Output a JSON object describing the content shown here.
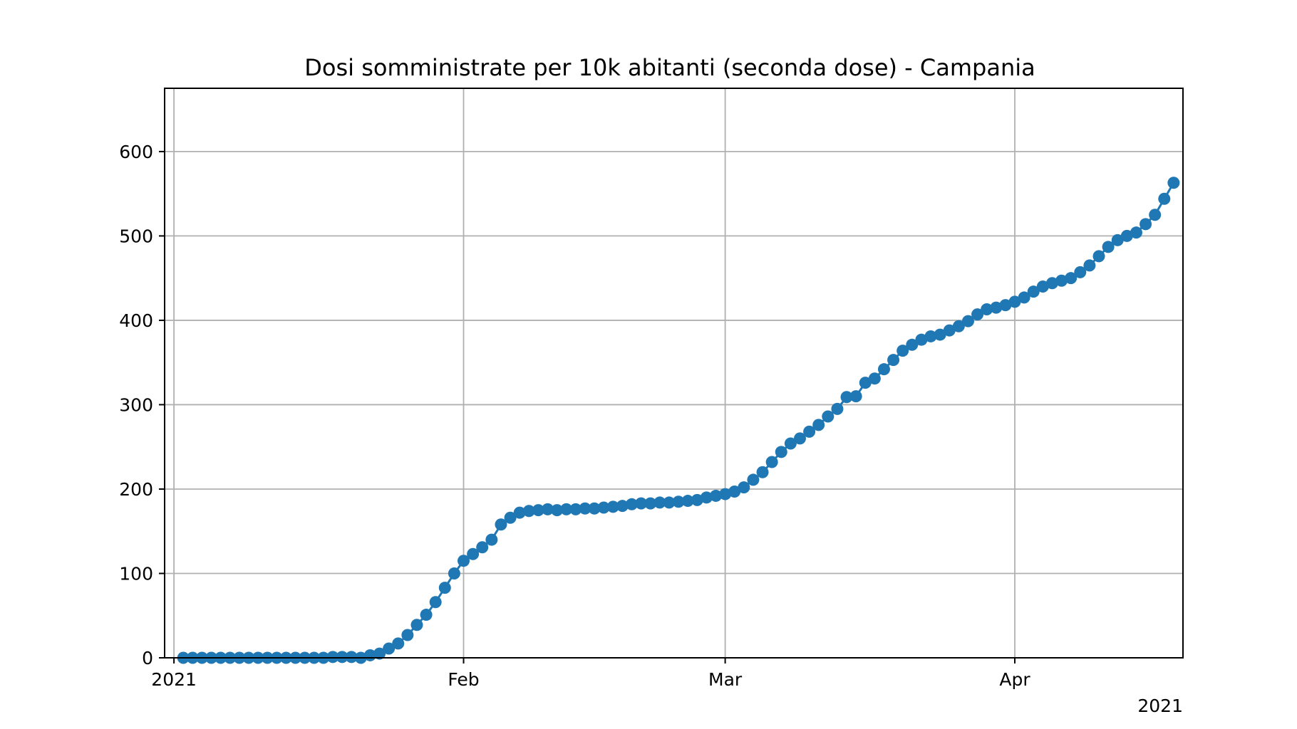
{
  "chart_data": {
    "type": "line",
    "title": "Dosi somministrate per 10k abitanti (seconda dose) - Campania",
    "xlabel": "",
    "ylabel": "",
    "x_offset_label": "2021",
    "xlim": [
      "2020-12-31",
      "2021-04-19"
    ],
    "ylim": [
      0,
      675
    ],
    "grid": true,
    "color": "#1f77b4",
    "x_ticks": [
      {
        "date": "2021-01-01",
        "label": "2021"
      },
      {
        "date": "2021-02-01",
        "label": "Feb"
      },
      {
        "date": "2021-03-01",
        "label": "Mar"
      },
      {
        "date": "2021-04-01",
        "label": "Apr"
      }
    ],
    "y_ticks": [
      0,
      100,
      200,
      300,
      400,
      500,
      600
    ],
    "series": [
      {
        "x": [
          "2021-01-02",
          "2021-01-03",
          "2021-01-04",
          "2021-01-05",
          "2021-01-06",
          "2021-01-07",
          "2021-01-08",
          "2021-01-09",
          "2021-01-10",
          "2021-01-11",
          "2021-01-12",
          "2021-01-13",
          "2021-01-14",
          "2021-01-15",
          "2021-01-16",
          "2021-01-17",
          "2021-01-18",
          "2021-01-19",
          "2021-01-20",
          "2021-01-21",
          "2021-01-22",
          "2021-01-23",
          "2021-01-24",
          "2021-01-25",
          "2021-01-26",
          "2021-01-27",
          "2021-01-28",
          "2021-01-29",
          "2021-01-30",
          "2021-01-31",
          "2021-02-01",
          "2021-02-02",
          "2021-02-03",
          "2021-02-04",
          "2021-02-05",
          "2021-02-06",
          "2021-02-07",
          "2021-02-08",
          "2021-02-09",
          "2021-02-10",
          "2021-02-11",
          "2021-02-12",
          "2021-02-13",
          "2021-02-14",
          "2021-02-15",
          "2021-02-16",
          "2021-02-17",
          "2021-02-18",
          "2021-02-19",
          "2021-02-20",
          "2021-02-21",
          "2021-02-22",
          "2021-02-23",
          "2021-02-24",
          "2021-02-25",
          "2021-02-26",
          "2021-02-27",
          "2021-02-28",
          "2021-03-01",
          "2021-03-02",
          "2021-03-03",
          "2021-03-04",
          "2021-03-05",
          "2021-03-06",
          "2021-03-07",
          "2021-03-08",
          "2021-03-09",
          "2021-03-10",
          "2021-03-11",
          "2021-03-12",
          "2021-03-13",
          "2021-03-14",
          "2021-03-15",
          "2021-03-16",
          "2021-03-17",
          "2021-03-18",
          "2021-03-19",
          "2021-03-20",
          "2021-03-21",
          "2021-03-22",
          "2021-03-23",
          "2021-03-24",
          "2021-03-25",
          "2021-03-26",
          "2021-03-27",
          "2021-03-28",
          "2021-03-29",
          "2021-03-30",
          "2021-03-31",
          "2021-04-01",
          "2021-04-02",
          "2021-04-03",
          "2021-04-04",
          "2021-04-05",
          "2021-04-06",
          "2021-04-07",
          "2021-04-08",
          "2021-04-09",
          "2021-04-10",
          "2021-04-11",
          "2021-04-12",
          "2021-04-13",
          "2021-04-14",
          "2021-04-15",
          "2021-04-16",
          "2021-04-17",
          "2021-04-18"
        ],
        "y": [
          0,
          0,
          0,
          0,
          0,
          0,
          0,
          0,
          0,
          0,
          0,
          0,
          0,
          0,
          0,
          0,
          1,
          1,
          1,
          0,
          3,
          5,
          11,
          17,
          27,
          39,
          51,
          66,
          83,
          100,
          115,
          123,
          131,
          140,
          158,
          166,
          172,
          174,
          175,
          176,
          175,
          176,
          176,
          177,
          177,
          178,
          179,
          180,
          182,
          183,
          183,
          184,
          184,
          185,
          186,
          187,
          190,
          192,
          194,
          197,
          202,
          211,
          220,
          232,
          244,
          254,
          260,
          268,
          276,
          286,
          295,
          309,
          310,
          326,
          331,
          342,
          353,
          364,
          371,
          377,
          381,
          383,
          388,
          393,
          399,
          407,
          413,
          415,
          418,
          422,
          427,
          434,
          440,
          444,
          447,
          450,
          457,
          465,
          476,
          487,
          495,
          500,
          504,
          514,
          525,
          544,
          563
        ]
      }
    ]
  }
}
